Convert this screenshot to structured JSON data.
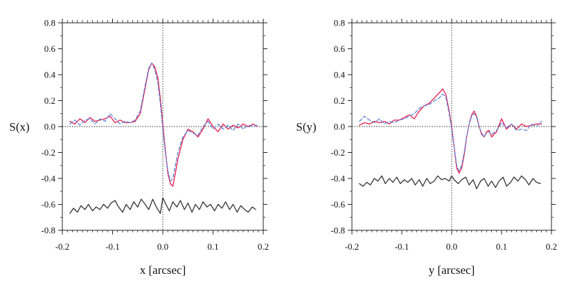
{
  "chart_data": [
    {
      "type": "line",
      "xlabel": "x [arcsec]",
      "ylabel": "S(x)",
      "xlim": [
        -0.2,
        0.2
      ],
      "ylim": [
        -0.8,
        0.8
      ],
      "xticks": [
        -0.2,
        -0.1,
        0.0,
        0.1,
        0.2
      ],
      "yticks": [
        -0.8,
        -0.6,
        -0.4,
        -0.2,
        0.0,
        0.2,
        0.4,
        0.6,
        0.8
      ],
      "xtick_labels": [
        "-0.2",
        "-0.1",
        "0.0",
        "0.1",
        "0.2"
      ],
      "ytick_labels": [
        "-0.8",
        "-0.6",
        "-0.4",
        "-0.2",
        "0.0",
        "0.2",
        "0.4",
        "0.6",
        "0.8"
      ],
      "reference_lines": {
        "x": 0,
        "y": 0
      },
      "series": [
        {
          "color": "#e8194b",
          "dash": "solid",
          "x": [
            -0.185,
            -0.175,
            -0.165,
            -0.155,
            -0.145,
            -0.135,
            -0.125,
            -0.115,
            -0.105,
            -0.095,
            -0.085,
            -0.075,
            -0.065,
            -0.055,
            -0.045,
            -0.035,
            -0.028,
            -0.022,
            -0.016,
            -0.01,
            -0.005,
            0.0,
            0.005,
            0.01,
            0.015,
            0.02,
            0.025,
            0.03,
            0.04,
            0.05,
            0.06,
            0.07,
            0.08,
            0.09,
            0.1,
            0.11,
            0.12,
            0.13,
            0.14,
            0.15,
            0.16,
            0.17,
            0.18,
            0.188
          ],
          "y": [
            0.04,
            0.02,
            0.06,
            0.03,
            0.07,
            0.04,
            0.05,
            0.06,
            0.08,
            0.03,
            0.05,
            0.03,
            0.03,
            0.04,
            0.1,
            0.3,
            0.44,
            0.49,
            0.46,
            0.38,
            0.22,
            0.02,
            -0.18,
            -0.36,
            -0.44,
            -0.46,
            -0.36,
            -0.25,
            -0.1,
            -0.02,
            -0.04,
            -0.08,
            -0.02,
            0.06,
            0.0,
            -0.04,
            0.02,
            -0.02,
            0.01,
            -0.01,
            0.02,
            0.0,
            0.02,
            0.0
          ]
        },
        {
          "color": "#5e86d8",
          "dash": "dashed",
          "x": [
            -0.185,
            -0.175,
            -0.165,
            -0.155,
            -0.145,
            -0.135,
            -0.125,
            -0.115,
            -0.105,
            -0.095,
            -0.085,
            -0.075,
            -0.065,
            -0.055,
            -0.045,
            -0.035,
            -0.028,
            -0.022,
            -0.016,
            -0.01,
            -0.005,
            0.0,
            0.005,
            0.01,
            0.015,
            0.02,
            0.025,
            0.03,
            0.04,
            0.05,
            0.06,
            0.07,
            0.08,
            0.09,
            0.1,
            0.11,
            0.12,
            0.13,
            0.14,
            0.15,
            0.16,
            0.17,
            0.18,
            0.188
          ],
          "y": [
            0.02,
            0.05,
            0.01,
            0.05,
            0.06,
            0.02,
            0.06,
            0.04,
            0.1,
            0.06,
            0.02,
            0.04,
            0.03,
            0.05,
            0.12,
            0.32,
            0.45,
            0.49,
            0.44,
            0.34,
            0.18,
            -0.02,
            -0.2,
            -0.34,
            -0.42,
            -0.4,
            -0.3,
            -0.2,
            -0.08,
            -0.03,
            -0.05,
            -0.07,
            0.0,
            0.04,
            -0.02,
            0.02,
            -0.02,
            0.01,
            -0.03,
            0.02,
            -0.02,
            0.01,
            0.0,
            0.01
          ]
        },
        {
          "color": "#333333",
          "dash": "solid",
          "x": [
            -0.185,
            -0.178,
            -0.17,
            -0.163,
            -0.155,
            -0.148,
            -0.14,
            -0.133,
            -0.125,
            -0.118,
            -0.11,
            -0.103,
            -0.095,
            -0.088,
            -0.08,
            -0.073,
            -0.065,
            -0.058,
            -0.05,
            -0.043,
            -0.035,
            -0.028,
            -0.02,
            -0.013,
            -0.005,
            0.0,
            0.005,
            0.013,
            0.02,
            0.028,
            0.035,
            0.043,
            0.05,
            0.058,
            0.065,
            0.073,
            0.08,
            0.088,
            0.095,
            0.103,
            0.11,
            0.118,
            0.125,
            0.133,
            0.14,
            0.148,
            0.155,
            0.163,
            0.17,
            0.178,
            0.185
          ],
          "y": [
            -0.67,
            -0.63,
            -0.66,
            -0.61,
            -0.64,
            -0.6,
            -0.65,
            -0.62,
            -0.64,
            -0.6,
            -0.63,
            -0.59,
            -0.57,
            -0.62,
            -0.66,
            -0.6,
            -0.64,
            -0.58,
            -0.62,
            -0.56,
            -0.6,
            -0.64,
            -0.56,
            -0.62,
            -0.67,
            -0.55,
            -0.59,
            -0.65,
            -0.58,
            -0.62,
            -0.57,
            -0.64,
            -0.59,
            -0.66,
            -0.6,
            -0.64,
            -0.58,
            -0.62,
            -0.6,
            -0.65,
            -0.6,
            -0.63,
            -0.58,
            -0.64,
            -0.6,
            -0.66,
            -0.61,
            -0.64,
            -0.66,
            -0.62,
            -0.64
          ]
        }
      ]
    },
    {
      "type": "line",
      "xlabel": "y [arcsec]",
      "ylabel": "S(y)",
      "xlim": [
        -0.2,
        0.2
      ],
      "ylim": [
        -0.8,
        0.8
      ],
      "xticks": [
        -0.2,
        -0.1,
        0.0,
        0.1,
        0.2
      ],
      "yticks": [
        -0.8,
        -0.6,
        -0.4,
        -0.2,
        0.0,
        0.2,
        0.4,
        0.6,
        0.8
      ],
      "xtick_labels": [
        "-0.2",
        "-0.1",
        "0.0",
        "0.1",
        "0.2"
      ],
      "ytick_labels": [
        "-0.8",
        "-0.6",
        "-0.4",
        "-0.2",
        "0.0",
        "0.2",
        "0.4",
        "0.6",
        "0.8"
      ],
      "reference_lines": {
        "x": 0,
        "y": 0
      },
      "series": [
        {
          "color": "#e8194b",
          "dash": "solid",
          "x": [
            -0.185,
            -0.175,
            -0.165,
            -0.155,
            -0.145,
            -0.135,
            -0.125,
            -0.115,
            -0.105,
            -0.095,
            -0.085,
            -0.075,
            -0.065,
            -0.055,
            -0.045,
            -0.035,
            -0.025,
            -0.018,
            -0.012,
            -0.006,
            0.0,
            0.005,
            0.01,
            0.015,
            0.02,
            0.025,
            0.03,
            0.035,
            0.04,
            0.045,
            0.05,
            0.055,
            0.06,
            0.065,
            0.07,
            0.075,
            0.08,
            0.09,
            0.1,
            0.11,
            0.12,
            0.13,
            0.14,
            0.15,
            0.16,
            0.17,
            0.18
          ],
          "y": [
            0.01,
            0.03,
            0.02,
            0.04,
            0.03,
            0.04,
            0.02,
            0.05,
            0.05,
            0.07,
            0.09,
            0.06,
            0.12,
            0.16,
            0.18,
            0.22,
            0.26,
            0.29,
            0.25,
            0.14,
            0.0,
            -0.16,
            -0.32,
            -0.36,
            -0.32,
            -0.22,
            -0.08,
            0.02,
            0.09,
            0.12,
            0.08,
            0.0,
            -0.06,
            -0.08,
            -0.04,
            -0.03,
            -0.08,
            -0.04,
            0.06,
            -0.02,
            0.02,
            -0.02,
            0.02,
            0.0,
            0.01,
            0.02,
            0.02
          ]
        },
        {
          "color": "#5e86d8",
          "dash": "dashed",
          "x": [
            -0.185,
            -0.175,
            -0.165,
            -0.155,
            -0.145,
            -0.135,
            -0.125,
            -0.115,
            -0.105,
            -0.095,
            -0.085,
            -0.075,
            -0.065,
            -0.055,
            -0.045,
            -0.035,
            -0.025,
            -0.018,
            -0.012,
            -0.006,
            0.0,
            0.005,
            0.01,
            0.015,
            0.02,
            0.025,
            0.03,
            0.035,
            0.04,
            0.045,
            0.05,
            0.055,
            0.06,
            0.065,
            0.07,
            0.075,
            0.08,
            0.09,
            0.1,
            0.11,
            0.12,
            0.13,
            0.14,
            0.15,
            0.16,
            0.17,
            0.18
          ],
          "y": [
            0.04,
            0.08,
            0.05,
            0.03,
            0.06,
            0.02,
            0.04,
            0.03,
            0.05,
            0.06,
            0.08,
            0.1,
            0.14,
            0.16,
            0.17,
            0.2,
            0.22,
            0.25,
            0.23,
            0.12,
            -0.02,
            -0.16,
            -0.3,
            -0.34,
            -0.3,
            -0.2,
            -0.08,
            0.02,
            0.08,
            0.1,
            0.07,
            0.0,
            -0.05,
            -0.08,
            -0.05,
            -0.04,
            -0.06,
            -0.03,
            0.03,
            -0.01,
            0.02,
            -0.03,
            -0.02,
            -0.03,
            0.02,
            0.0,
            0.04
          ]
        },
        {
          "color": "#333333",
          "dash": "solid",
          "x": [
            -0.185,
            -0.178,
            -0.17,
            -0.163,
            -0.155,
            -0.148,
            -0.14,
            -0.133,
            -0.125,
            -0.118,
            -0.11,
            -0.103,
            -0.095,
            -0.088,
            -0.08,
            -0.073,
            -0.065,
            -0.058,
            -0.05,
            -0.043,
            -0.035,
            -0.028,
            -0.02,
            -0.013,
            -0.005,
            0.0,
            0.005,
            0.013,
            0.02,
            0.028,
            0.035,
            0.043,
            0.05,
            0.058,
            0.065,
            0.073,
            0.08,
            0.088,
            0.095,
            0.103,
            0.11,
            0.118,
            0.125,
            0.133,
            0.14,
            0.148,
            0.155,
            0.163,
            0.17,
            0.178
          ],
          "y": [
            -0.44,
            -0.46,
            -0.43,
            -0.45,
            -0.4,
            -0.42,
            -0.38,
            -0.44,
            -0.4,
            -0.43,
            -0.39,
            -0.44,
            -0.41,
            -0.43,
            -0.4,
            -0.45,
            -0.41,
            -0.46,
            -0.4,
            -0.44,
            -0.42,
            -0.38,
            -0.41,
            -0.4,
            -0.42,
            -0.38,
            -0.41,
            -0.44,
            -0.41,
            -0.39,
            -0.45,
            -0.41,
            -0.48,
            -0.42,
            -0.4,
            -0.46,
            -0.42,
            -0.47,
            -0.42,
            -0.39,
            -0.46,
            -0.43,
            -0.39,
            -0.42,
            -0.38,
            -0.41,
            -0.45,
            -0.4,
            -0.43,
            -0.44
          ]
        }
      ]
    }
  ]
}
